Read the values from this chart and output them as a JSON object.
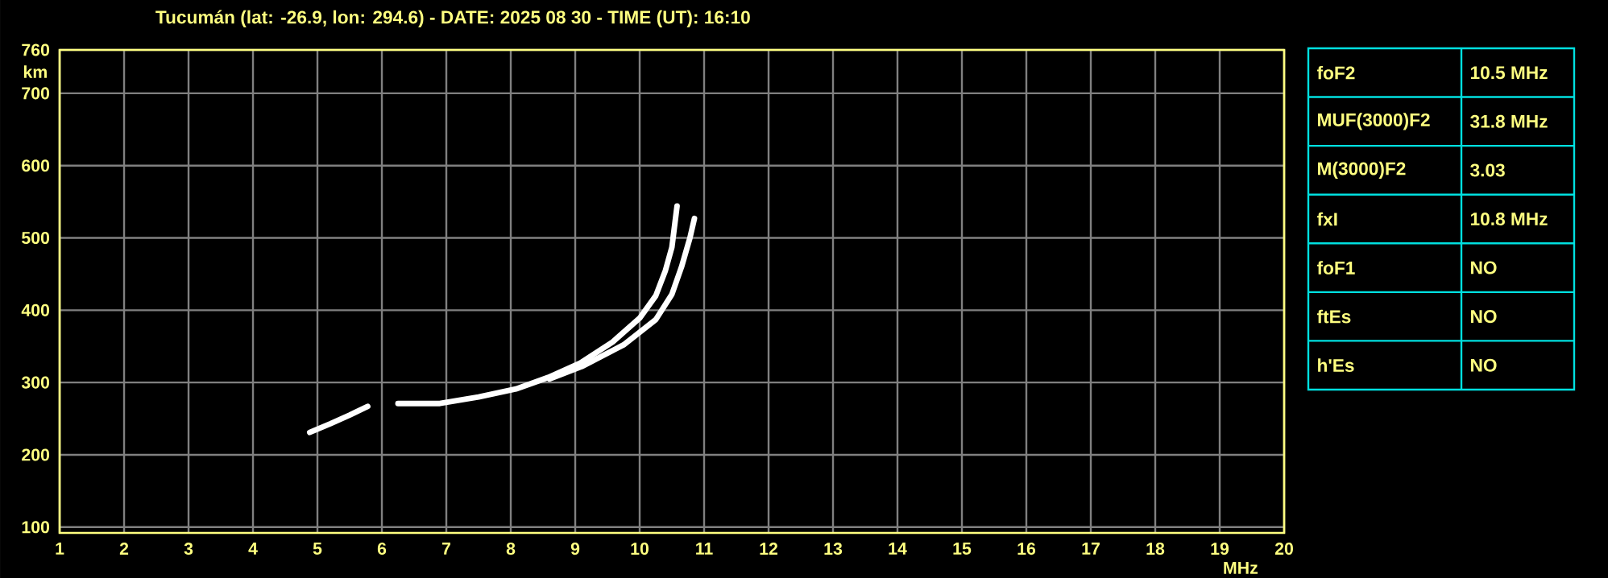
{
  "chart_data": [
    {
      "type": "line",
      "title": "Tucumán (lat: -26.9, lon: 294.6) - DATE: 2025 08 30 - TIME (UT): 16:10",
      "xlabel": "MHz",
      "ylabel": "km",
      "xlim": [
        1,
        20
      ],
      "ylim": [
        92,
        760
      ],
      "xticks": [
        1,
        2,
        3,
        4,
        5,
        6,
        7,
        8,
        9,
        10,
        11,
        12,
        13,
        14,
        15,
        16,
        17,
        18,
        19,
        20
      ],
      "yticks": [
        100,
        200,
        300,
        400,
        500,
        600,
        700,
        760
      ],
      "grid": true,
      "series": [
        {
          "color": "#ffffff",
          "x": [
            4.88,
            5.2,
            5.5,
            5.78,
            6.0,
            6.25,
            6.9,
            7.5,
            8.08,
            8.58,
            9.08,
            9.58,
            10.0,
            10.25,
            10.4,
            10.5,
            10.58
          ],
          "values": [
            231,
            243,
            255,
            267,
            null,
            271,
            271,
            280,
            291,
            307,
            327,
            356,
            389,
            420,
            455,
            487,
            544
          ]
        },
        {
          "color": "#ffffff",
          "x": [
            8.6,
            9.1,
            9.75,
            10.25,
            10.5,
            10.65,
            10.78,
            10.85
          ],
          "values": [
            305,
            322,
            352,
            387,
            422,
            460,
            500,
            527
          ]
        }
      ]
    },
    {
      "type": "other",
      "annotations": [
        "foF2",
        "10.5 MHz",
        "MUF(3000)F2",
        "31.8 MHz",
        "M(3000)F2",
        "3.03",
        "fxI",
        "10.8 MHz",
        "foF1",
        "NO",
        "ftEs",
        "NO",
        "h'Es",
        "NO"
      ]
    }
  ]
}
